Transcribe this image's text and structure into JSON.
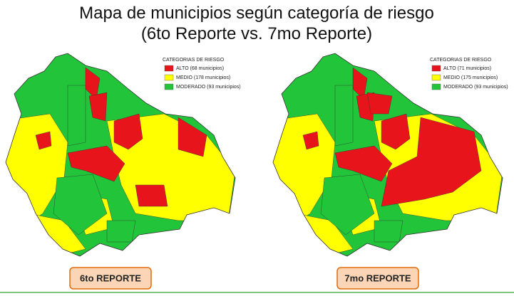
{
  "title": [
    "Mapa de municipios según categoría de riesgo",
    "(6to Reporte vs. 7mo Reporte)"
  ],
  "maps": [
    {
      "legend_title": "CATEGORIAS DE RIESGO",
      "legend": [
        "ALTO (68 municipios)",
        "MEDIO (178 municipios)",
        "MODERADO (93 municipios)"
      ],
      "label": "6to REPORTE"
    },
    {
      "legend_title": "CATEGORIAS DE RIESGO",
      "legend": [
        "ALTO (71 municipios)",
        "MEDIO (175 municipios)",
        "MODERADO (93 municipios)"
      ],
      "label": "7mo REPORTE"
    }
  ]
}
